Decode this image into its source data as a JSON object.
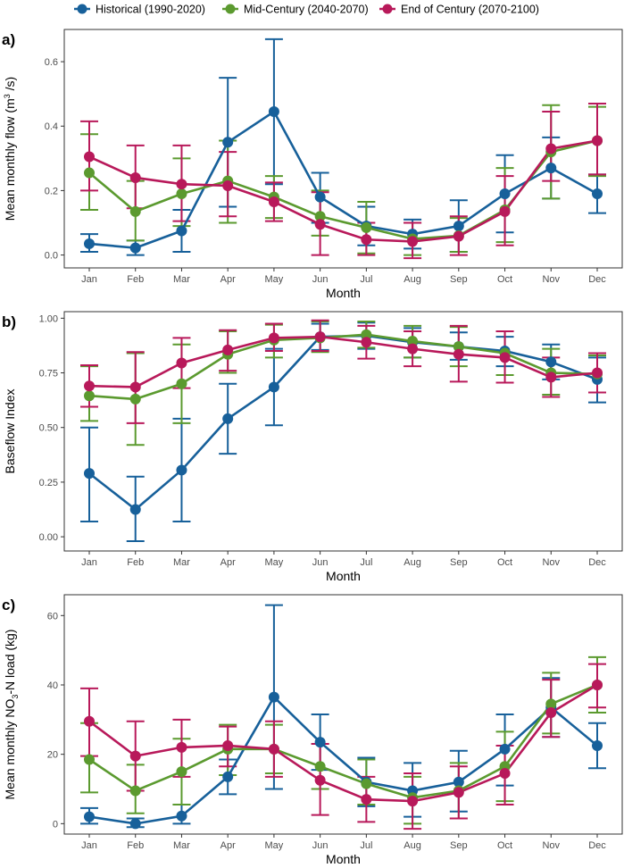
{
  "legend": {
    "entries": [
      {
        "name": "Historical (1990-2020)",
        "color": "#17609A"
      },
      {
        "name": "Mid-Century (2040-2070)",
        "color": "#5B9A2F"
      },
      {
        "name": "End of Century (2070-2100)",
        "color": "#B8195A"
      }
    ]
  },
  "chart_data": [
    {
      "type": "line",
      "panel_label": "a)",
      "xlabel": "Month",
      "ylabel_main": "Mean monthly flow (m",
      "ylabel_sup": "3",
      "ylabel_end": " /s)",
      "categories": [
        "Jan",
        "Feb",
        "Mar",
        "Apr",
        "May",
        "Jun",
        "Jul",
        "Aug",
        "Sep",
        "Oct",
        "Nov",
        "Dec"
      ],
      "ylim": [
        -0.04,
        0.7
      ],
      "yticks": [
        0.0,
        0.2,
        0.4,
        0.6
      ],
      "ytick_labels": [
        "0.0",
        "0.2",
        "0.4",
        "0.6"
      ],
      "series": [
        {
          "name": "Historical (1990-2020)",
          "color": "#17609A",
          "values": [
            0.035,
            0.022,
            0.075,
            0.35,
            0.445,
            0.18,
            0.09,
            0.065,
            0.09,
            0.19,
            0.27,
            0.19
          ],
          "err_low": [
            0.01,
            0.0,
            0.01,
            0.15,
            0.22,
            0.1,
            0.03,
            0.02,
            0.01,
            0.07,
            0.175,
            0.13
          ],
          "err_high": [
            0.065,
            0.045,
            0.14,
            0.55,
            0.67,
            0.255,
            0.15,
            0.11,
            0.17,
            0.31,
            0.365,
            0.25
          ]
        },
        {
          "name": "Mid-Century (2040-2070)",
          "color": "#5B9A2F",
          "values": [
            0.255,
            0.135,
            0.19,
            0.23,
            0.18,
            0.12,
            0.085,
            0.05,
            0.06,
            0.14,
            0.32,
            0.355
          ],
          "err_low": [
            0.14,
            0.045,
            0.09,
            0.1,
            0.115,
            0.06,
            0.005,
            0.0,
            0.01,
            0.04,
            0.175,
            0.245
          ],
          "err_high": [
            0.375,
            0.23,
            0.3,
            0.355,
            0.245,
            0.2,
            0.165,
            0.1,
            0.115,
            0.27,
            0.465,
            0.46
          ]
        },
        {
          "name": "End of Century (2070-2100)",
          "color": "#B8195A",
          "values": [
            0.305,
            0.24,
            0.22,
            0.215,
            0.165,
            0.095,
            0.048,
            0.042,
            0.058,
            0.135,
            0.33,
            0.355
          ],
          "err_low": [
            0.2,
            0.145,
            0.105,
            0.12,
            0.105,
            0.0,
            0.0,
            -0.01,
            0.0,
            0.03,
            0.23,
            0.25
          ],
          "err_high": [
            0.415,
            0.34,
            0.34,
            0.32,
            0.225,
            0.195,
            0.1,
            0.1,
            0.12,
            0.245,
            0.445,
            0.47
          ]
        }
      ]
    },
    {
      "type": "line",
      "panel_label": "b)",
      "xlabel": "Month",
      "ylabel_main": "Baseflow Index",
      "ylabel_sup": "",
      "ylabel_end": "",
      "categories": [
        "Jan",
        "Feb",
        "Mar",
        "Apr",
        "May",
        "Jun",
        "Jul",
        "Aug",
        "Sep",
        "Oct",
        "Nov",
        "Dec"
      ],
      "ylim": [
        -0.065,
        1.03
      ],
      "yticks": [
        0.0,
        0.25,
        0.5,
        0.75,
        1.0
      ],
      "ytick_labels": [
        "0.00",
        "0.25",
        "0.50",
        "0.75",
        "1.00"
      ],
      "series": [
        {
          "name": "Historical (1990-2020)",
          "color": "#17609A",
          "values": [
            0.29,
            0.125,
            0.305,
            0.54,
            0.685,
            0.915,
            0.92,
            0.89,
            0.87,
            0.85,
            0.8,
            0.72
          ],
          "err_low": [
            0.07,
            -0.02,
            0.07,
            0.38,
            0.51,
            0.855,
            0.86,
            0.82,
            0.81,
            0.78,
            0.72,
            0.615
          ],
          "err_high": [
            0.5,
            0.275,
            0.54,
            0.7,
            0.86,
            0.975,
            0.98,
            0.955,
            0.935,
            0.915,
            0.88,
            0.82
          ]
        },
        {
          "name": "Mid-Century (2040-2070)",
          "color": "#5B9A2F",
          "values": [
            0.645,
            0.63,
            0.7,
            0.835,
            0.9,
            0.91,
            0.925,
            0.895,
            0.87,
            0.84,
            0.75,
            0.745
          ],
          "err_low": [
            0.53,
            0.42,
            0.52,
            0.75,
            0.82,
            0.845,
            0.865,
            0.82,
            0.78,
            0.74,
            0.65,
            0.66
          ],
          "err_high": [
            0.78,
            0.84,
            0.88,
            0.94,
            0.97,
            0.985,
            0.985,
            0.965,
            0.96,
            0.94,
            0.86,
            0.83
          ]
        },
        {
          "name": "End of Century (2070-2100)",
          "color": "#B8195A",
          "values": [
            0.69,
            0.685,
            0.795,
            0.855,
            0.91,
            0.915,
            0.89,
            0.86,
            0.835,
            0.82,
            0.73,
            0.75
          ],
          "err_low": [
            0.595,
            0.52,
            0.68,
            0.76,
            0.85,
            0.85,
            0.815,
            0.78,
            0.71,
            0.705,
            0.64,
            0.66
          ],
          "err_high": [
            0.785,
            0.845,
            0.91,
            0.945,
            0.975,
            0.99,
            0.965,
            0.94,
            0.965,
            0.94,
            0.82,
            0.84
          ]
        }
      ]
    },
    {
      "type": "line",
      "panel_label": "c)",
      "xlabel": "Month",
      "ylabel_main": "Mean monthly NO",
      "ylabel_sub": "3",
      "ylabel_end": "-N load (kg)",
      "categories": [
        "Jan",
        "Feb",
        "Mar",
        "Apr",
        "May",
        "Jun",
        "Jul",
        "Aug",
        "Sep",
        "Oct",
        "Nov",
        "Dec"
      ],
      "ylim": [
        -3,
        66
      ],
      "yticks": [
        0,
        20,
        40,
        60
      ],
      "ytick_labels": [
        "0",
        "20",
        "40",
        "60"
      ],
      "series": [
        {
          "name": "Historical (1990-2020)",
          "color": "#17609A",
          "values": [
            2,
            0,
            2.2,
            13.5,
            36.5,
            23.5,
            12,
            9.5,
            12,
            21.5,
            33.5,
            22.5
          ],
          "err_low": [
            0,
            -1,
            0,
            8.5,
            10,
            15.5,
            5,
            2,
            3.5,
            11,
            25,
            16
          ],
          "err_high": [
            4.5,
            1.5,
            5.5,
            18.5,
            63,
            31.5,
            19,
            17.5,
            21,
            31.5,
            42,
            29
          ]
        },
        {
          "name": "Mid-Century (2040-2070)",
          "color": "#5B9A2F",
          "values": [
            18.5,
            9.5,
            15,
            21.5,
            21.5,
            16.5,
            11.5,
            7.5,
            9.5,
            16.5,
            34.5,
            40
          ],
          "err_low": [
            9,
            3,
            5.5,
            14,
            14.5,
            10,
            5.5,
            0,
            1.5,
            6.5,
            26,
            32
          ],
          "err_high": [
            29,
            17,
            24.5,
            28.5,
            28.5,
            23,
            18.5,
            13.5,
            17.5,
            26.5,
            43.5,
            48
          ]
        },
        {
          "name": "End of Century (2070-2100)",
          "color": "#B8195A",
          "values": [
            29.5,
            19.5,
            22,
            22.5,
            21.5,
            12.5,
            7,
            6.5,
            9,
            14.5,
            32,
            40
          ],
          "err_low": [
            19.5,
            9.5,
            13.5,
            16.5,
            13.5,
            2.5,
            0.5,
            -1.5,
            1.5,
            5.5,
            25,
            33.5
          ],
          "err_high": [
            39,
            29.5,
            30,
            28,
            29.5,
            23,
            13.5,
            14.5,
            16.5,
            22.5,
            41.5,
            46
          ]
        }
      ]
    }
  ]
}
